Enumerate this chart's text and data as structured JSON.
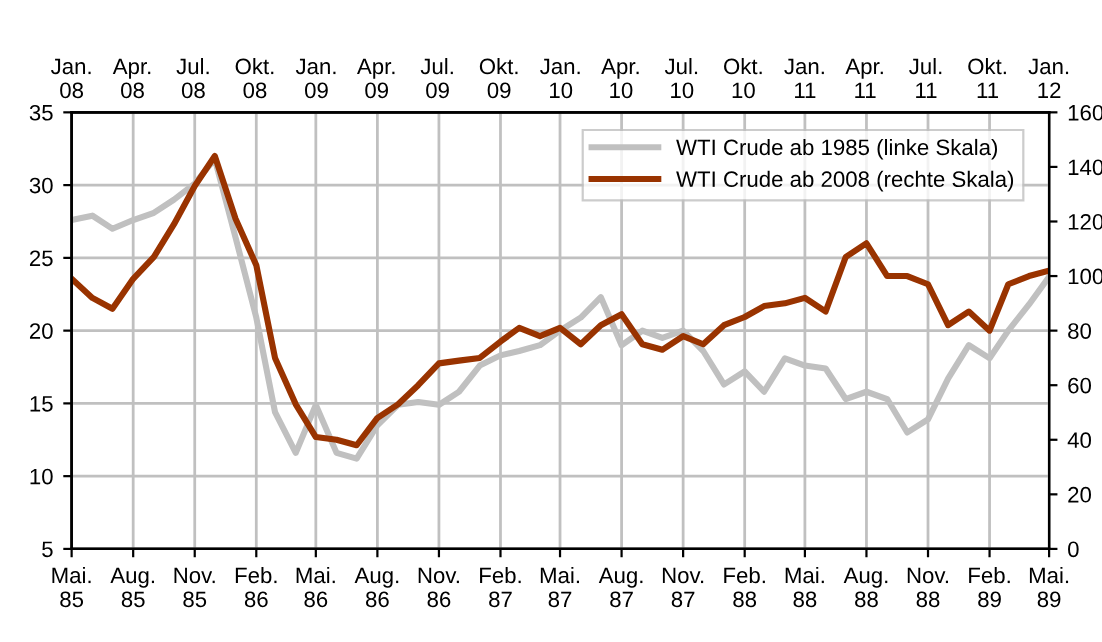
{
  "chart_data": {
    "type": "line",
    "x": [
      "1985-05",
      "1985-06",
      "1985-07",
      "1985-08",
      "1985-09",
      "1985-10",
      "1985-11",
      "1985-12",
      "1986-01",
      "1986-02",
      "1986-03",
      "1986-04",
      "1986-05",
      "1986-06",
      "1986-07",
      "1986-08",
      "1986-09",
      "1986-10",
      "1986-11",
      "1986-12",
      "1987-01",
      "1987-02",
      "1987-03",
      "1987-04",
      "1987-05",
      "1987-06",
      "1987-07",
      "1987-08",
      "1987-09",
      "1987-10",
      "1987-11",
      "1987-12",
      "1988-01",
      "1988-02",
      "1988-03",
      "1988-04",
      "1988-05",
      "1988-06",
      "1988-07",
      "1988-08",
      "1988-09",
      "1988-10",
      "1988-11",
      "1988-12",
      "1989-01",
      "1989-02",
      "1989-03",
      "1989-04",
      "1989-05"
    ],
    "xlim": [
      "1985-05",
      "1989-05"
    ],
    "xticks": [
      {
        "value": "1985-05",
        "label": "Mai.\n85"
      },
      {
        "value": "1985-08",
        "label": "Aug.\n85"
      },
      {
        "value": "1985-11",
        "label": "Nov.\n85"
      },
      {
        "value": "1986-02",
        "label": "Feb.\n86"
      },
      {
        "value": "1986-05",
        "label": "Mai.\n86"
      },
      {
        "value": "1986-08",
        "label": "Aug.\n86"
      },
      {
        "value": "1986-11",
        "label": "Nov.\n86"
      },
      {
        "value": "1987-02",
        "label": "Feb.\n87"
      },
      {
        "value": "1987-05",
        "label": "Mai.\n87"
      },
      {
        "value": "1987-08",
        "label": "Aug.\n87"
      },
      {
        "value": "1987-11",
        "label": "Nov.\n87"
      },
      {
        "value": "1988-02",
        "label": "Feb.\n88"
      },
      {
        "value": "1988-05",
        "label": "Mai.\n88"
      },
      {
        "value": "1988-08",
        "label": "Aug.\n88"
      },
      {
        "value": "1988-11",
        "label": "Nov.\n88"
      },
      {
        "value": "1989-02",
        "label": "Feb.\n89"
      },
      {
        "value": "1989-05",
        "label": "Mai.\n89"
      }
    ],
    "x2lim": [
      "2008-01",
      "2012-01"
    ],
    "x2ticks": [
      {
        "value": "2008-01",
        "label": "Jan.\n08"
      },
      {
        "value": "2008-04",
        "label": "Apr.\n08"
      },
      {
        "value": "2008-07",
        "label": "Jul.\n08"
      },
      {
        "value": "2008-10",
        "label": "Okt.\n08"
      },
      {
        "value": "2009-01",
        "label": "Jan.\n09"
      },
      {
        "value": "2009-04",
        "label": "Apr.\n09"
      },
      {
        "value": "2009-07",
        "label": "Jul.\n09"
      },
      {
        "value": "2009-10",
        "label": "Okt.\n09"
      },
      {
        "value": "2010-01",
        "label": "Jan.\n10"
      },
      {
        "value": "2010-04",
        "label": "Apr.\n10"
      },
      {
        "value": "2010-07",
        "label": "Jul.\n10"
      },
      {
        "value": "2010-10",
        "label": "Okt.\n10"
      },
      {
        "value": "2011-01",
        "label": "Jan.\n11"
      },
      {
        "value": "2011-04",
        "label": "Apr.\n11"
      },
      {
        "value": "2011-07",
        "label": "Jul.\n11"
      },
      {
        "value": "2011-10",
        "label": "Okt.\n11"
      },
      {
        "value": "2012-01",
        "label": "Jan.\n12"
      }
    ],
    "ylim": [
      5,
      35
    ],
    "yticks": [
      5,
      10,
      15,
      20,
      25,
      30,
      35
    ],
    "y2lim": [
      0,
      160
    ],
    "y2ticks": [
      0,
      20,
      40,
      60,
      80,
      100,
      120,
      140,
      160
    ],
    "grid": true,
    "legend": "top right",
    "line_style": "solid",
    "marker": "none",
    "series": [
      {
        "name": "WTI Crude ab 1985 (linke Skala)",
        "color": "#c0c0c0",
        "axis": "y",
        "values": [
          27.6,
          27.9,
          27.0,
          27.6,
          28.1,
          29.0,
          30.1,
          31.8,
          26.4,
          20.9,
          14.4,
          11.6,
          14.9,
          11.6,
          11.2,
          13.5,
          14.9,
          15.1,
          14.9,
          15.8,
          17.6,
          18.3,
          18.6,
          19.0,
          20.0,
          20.9,
          22.3,
          19.0,
          20.0,
          19.5,
          20.0,
          18.6,
          16.3,
          17.2,
          15.8,
          18.1,
          17.6,
          17.4,
          15.3,
          15.8,
          15.3,
          13.0,
          13.9,
          16.7,
          19.0,
          18.1,
          20.0,
          21.8,
          23.7
        ]
      },
      {
        "name": "WTI Crude ab 2008 (rechte Skala)",
        "color": "#993300",
        "axis": "y2",
        "values": [
          99,
          92,
          88,
          99,
          107,
          119,
          133,
          144,
          121,
          104,
          70,
          53,
          41,
          40,
          38,
          48,
          53,
          60,
          68,
          69,
          70,
          76,
          81,
          78,
          81,
          75,
          82,
          86,
          75,
          73,
          78,
          75,
          82,
          85,
          89,
          90,
          92,
          87,
          107,
          112,
          100,
          100,
          97,
          82,
          87,
          80,
          97,
          100,
          102
        ]
      }
    ]
  }
}
